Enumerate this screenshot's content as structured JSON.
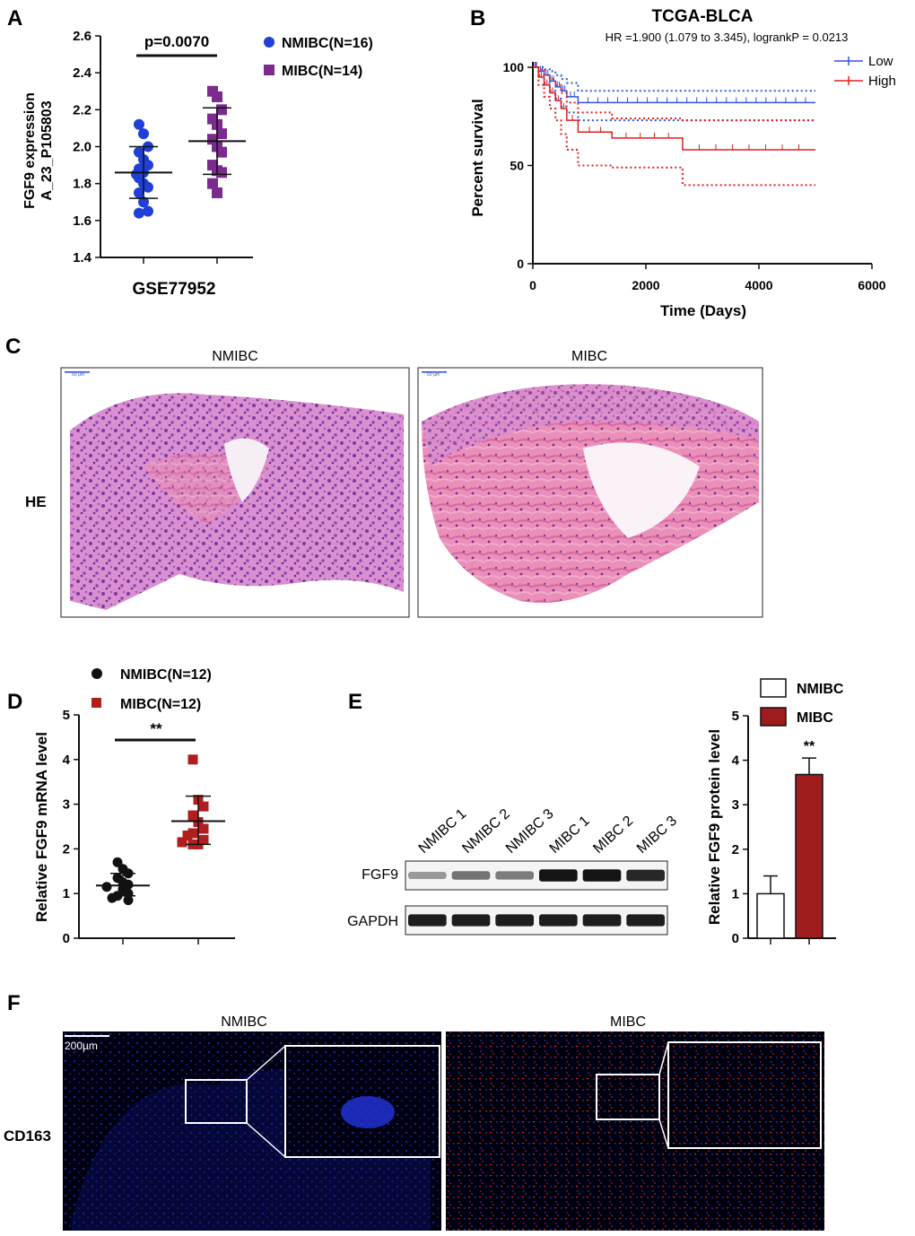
{
  "panels": {
    "A": {
      "letter": "A",
      "chart_data": {
        "type": "scatter",
        "title": "",
        "xlabel": "GSE77952",
        "ylabel": "FGF9 expression A_23_P105803",
        "ylabel_lines": [
          "FGF9 expression",
          "A_23_P105803"
        ],
        "ylim": [
          1.4,
          2.6
        ],
        "yticks": [
          1.4,
          1.6,
          1.8,
          2.0,
          2.2,
          2.4,
          2.6
        ],
        "significance": "p=0.0070",
        "series": [
          {
            "name": "NMIBC(N=16)",
            "color": "#1f3fd6",
            "marker": "circle",
            "values": [
              2.12,
              2.07,
              2.0,
              1.97,
              1.93,
              1.9,
              1.88,
              1.86,
              1.85,
              1.83,
              1.8,
              1.78,
              1.75,
              1.7,
              1.65,
              1.64
            ],
            "mean": 1.86,
            "sd_upper": 2.0,
            "sd_lower": 1.72
          },
          {
            "name": "MIBC(N=14)",
            "color": "#7b2a8e",
            "marker": "square",
            "values": [
              2.3,
              2.27,
              2.2,
              2.15,
              2.12,
              2.07,
              2.04,
              2.0,
              1.97,
              1.9,
              1.87,
              1.86,
              1.8,
              1.75
            ],
            "mean": 2.03,
            "sd_upper": 2.21,
            "sd_lower": 1.85
          }
        ]
      }
    },
    "B": {
      "letter": "B",
      "chart_data": {
        "type": "line",
        "title": "TCGA-BLCA",
        "subtitle": "HR =1.900 (1.079 to 3.345), logrankP = 0.0213",
        "xlabel": "Time (Days)",
        "ylabel": "Percent survival",
        "xlim": [
          0,
          6000
        ],
        "ylim": [
          0,
          100
        ],
        "xticks": [
          0,
          2000,
          4000,
          6000
        ],
        "yticks": [
          0,
          50,
          100
        ],
        "series": [
          {
            "name": "Low",
            "color": "#3355dd",
            "x": [
              0,
              100,
              200,
              300,
              400,
              500,
              600,
              800,
              5000
            ],
            "y": [
              100,
              98,
              96,
              93,
              90,
              88,
              85,
              82,
              82
            ],
            "ci_upper": [
              100,
              100,
              99,
              98,
              96,
              94,
              92,
              88,
              88
            ],
            "ci_lower": [
              100,
              96,
              92,
              88,
              84,
              80,
              77,
              73,
              73
            ]
          },
          {
            "name": "High",
            "color": "#e02020",
            "x": [
              0,
              100,
              200,
              300,
              400,
              500,
              600,
              800,
              1400,
              2650,
              5000
            ],
            "y": [
              100,
              95,
              91,
              87,
              83,
              79,
              73,
              67,
              64,
              58,
              58
            ],
            "ci_upper": [
              100,
              99,
              96,
              94,
              91,
              87,
              82,
              77,
              74,
              73,
              73
            ],
            "ci_lower": [
              100,
              91,
              85,
              79,
              73,
              66,
              58,
              50,
              49,
              40,
              40
            ]
          }
        ]
      }
    },
    "C": {
      "letter": "C",
      "row_label": "HE",
      "images": [
        {
          "title": "NMIBC",
          "scale": "50 µm"
        },
        {
          "title": "MIBC",
          "scale": "50 µm"
        }
      ]
    },
    "D": {
      "letter": "D",
      "chart_data": {
        "type": "scatter",
        "title": "",
        "xlabel": "",
        "ylabel": "Relative FGF9 mRNA level",
        "ylim": [
          0,
          5
        ],
        "yticks": [
          0,
          1,
          2,
          3,
          4,
          5
        ],
        "significance": "**",
        "series": [
          {
            "name": "NMIBC(N=12)",
            "color": "#111111",
            "marker": "circle",
            "values": [
              1.7,
              1.55,
              1.45,
              1.35,
              1.25,
              1.2,
              1.15,
              1.1,
              1.0,
              0.95,
              0.9,
              0.85
            ],
            "mean": 1.18,
            "sd_upper": 1.45,
            "sd_lower": 0.95
          },
          {
            "name": "MIBC(N=12)",
            "color": "#b01e1e",
            "marker": "square",
            "values": [
              4.0,
              3.1,
              2.95,
              2.75,
              2.6,
              2.45,
              2.35,
              2.3,
              2.2,
              2.15,
              2.1,
              2.1
            ],
            "mean": 2.62,
            "sd_upper": 3.18,
            "sd_lower": 2.1
          }
        ]
      }
    },
    "E": {
      "letter": "E",
      "blot": {
        "lanes": [
          "NMIBC 1",
          "NMIBC 2",
          "NMIBC 3",
          "MIBC 1",
          "MIBC 2",
          "MIBC 3"
        ],
        "rows": [
          {
            "label": "FGF9",
            "intensity": [
              0.25,
              0.45,
              0.4,
              0.95,
              0.95,
              0.85
            ]
          },
          {
            "label": "GAPDH",
            "intensity": [
              0.9,
              0.9,
              0.9,
              0.9,
              0.9,
              0.9
            ]
          }
        ]
      },
      "chart_data": {
        "type": "bar",
        "title": "",
        "xlabel": "",
        "ylabel": "Relative FGF9 protein level",
        "ylim": [
          0,
          5
        ],
        "yticks": [
          0,
          1,
          2,
          3,
          4,
          5
        ],
        "categories": [
          "NMIBC",
          "MIBC"
        ],
        "values": [
          1.0,
          3.68
        ],
        "errors": [
          0.4,
          0.37
        ],
        "colors": [
          "#ffffff",
          "#9e1c1c"
        ],
        "significance": "**",
        "legend": [
          "NMIBC",
          "MIBC"
        ]
      }
    },
    "F": {
      "letter": "F",
      "row_label": "CD163",
      "images": [
        {
          "title": "NMIBC",
          "scale": "200µm"
        },
        {
          "title": "MIBC",
          "scale": ""
        }
      ]
    }
  }
}
